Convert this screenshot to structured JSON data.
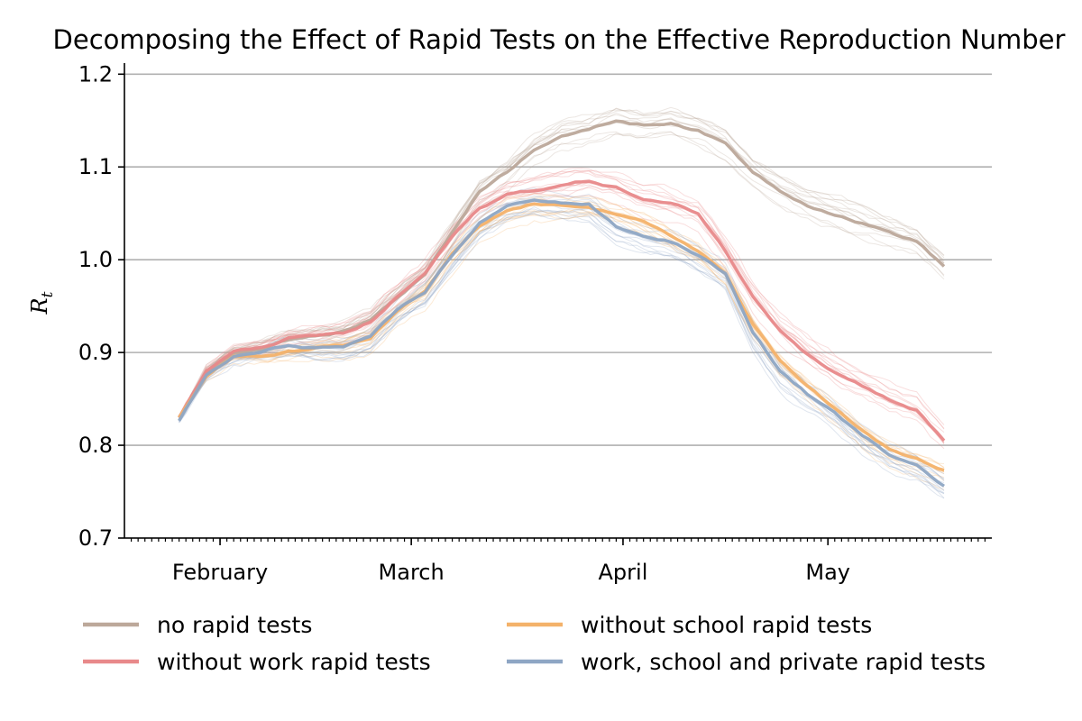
{
  "chart_data": {
    "type": "line",
    "title": "Decomposing the Effect of Rapid Tests on the Effective Reproduction Number",
    "xlabel": "",
    "ylabel": {
      "main": "R",
      "subscript": "t"
    },
    "x_start": "2021-01-26",
    "x_end": "2021-05-18",
    "xlim": [
      "2021-01-18",
      "2021-05-25"
    ],
    "ylim": [
      0.7,
      1.21
    ],
    "x_tick_labels": [
      {
        "date": "2021-02-01",
        "label": "February"
      },
      {
        "date": "2021-03-01",
        "label": "March"
      },
      {
        "date": "2021-04-01",
        "label": "April"
      },
      {
        "date": "2021-05-01",
        "label": "May"
      }
    ],
    "y_ticks": [
      0.7,
      0.8,
      0.9,
      1.0,
      1.1,
      1.2
    ],
    "y_tick_labels": [
      "0.7",
      "0.8",
      "0.9",
      "1.0",
      "1.1",
      "1.2"
    ],
    "grid": "horizontal",
    "legend_position": "bottom",
    "series": [
      {
        "name": "no rapid tests",
        "color": "#bca89a",
        "points": [
          [
            "2021-01-26",
            0.83
          ],
          [
            "2021-01-30",
            0.88
          ],
          [
            "2021-02-03",
            0.9
          ],
          [
            "2021-02-07",
            0.905
          ],
          [
            "2021-02-11",
            0.915
          ],
          [
            "2021-02-15",
            0.918
          ],
          [
            "2021-02-19",
            0.922
          ],
          [
            "2021-02-23",
            0.935
          ],
          [
            "2021-02-27",
            0.96
          ],
          [
            "2021-03-03",
            0.985
          ],
          [
            "2021-03-07",
            1.03
          ],
          [
            "2021-03-11",
            1.075
          ],
          [
            "2021-03-15",
            1.095
          ],
          [
            "2021-03-19",
            1.12
          ],
          [
            "2021-03-23",
            1.135
          ],
          [
            "2021-03-27",
            1.14
          ],
          [
            "2021-03-31",
            1.15
          ],
          [
            "2021-04-04",
            1.145
          ],
          [
            "2021-04-08",
            1.148
          ],
          [
            "2021-04-12",
            1.14
          ],
          [
            "2021-04-16",
            1.125
          ],
          [
            "2021-04-20",
            1.095
          ],
          [
            "2021-04-24",
            1.075
          ],
          [
            "2021-04-28",
            1.06
          ],
          [
            "2021-05-02",
            1.05
          ],
          [
            "2021-05-06",
            1.04
          ],
          [
            "2021-05-10",
            1.03
          ],
          [
            "2021-05-14",
            1.02
          ],
          [
            "2021-05-18",
            0.993
          ]
        ]
      },
      {
        "name": "without work rapid tests",
        "color": "#e8898a",
        "points": [
          [
            "2021-01-26",
            0.83
          ],
          [
            "2021-01-30",
            0.88
          ],
          [
            "2021-02-03",
            0.9
          ],
          [
            "2021-02-07",
            0.905
          ],
          [
            "2021-02-11",
            0.915
          ],
          [
            "2021-02-15",
            0.918
          ],
          [
            "2021-02-19",
            0.92
          ],
          [
            "2021-02-23",
            0.932
          ],
          [
            "2021-02-27",
            0.96
          ],
          [
            "2021-03-03",
            0.985
          ],
          [
            "2021-03-07",
            1.025
          ],
          [
            "2021-03-11",
            1.055
          ],
          [
            "2021-03-15",
            1.07
          ],
          [
            "2021-03-19",
            1.075
          ],
          [
            "2021-03-23",
            1.08
          ],
          [
            "2021-03-27",
            1.085
          ],
          [
            "2021-03-31",
            1.078
          ],
          [
            "2021-04-04",
            1.065
          ],
          [
            "2021-04-08",
            1.06
          ],
          [
            "2021-04-12",
            1.05
          ],
          [
            "2021-04-16",
            1.01
          ],
          [
            "2021-04-20",
            0.96
          ],
          [
            "2021-04-24",
            0.925
          ],
          [
            "2021-04-28",
            0.9
          ],
          [
            "2021-05-02",
            0.88
          ],
          [
            "2021-05-06",
            0.865
          ],
          [
            "2021-05-10",
            0.85
          ],
          [
            "2021-05-14",
            0.838
          ],
          [
            "2021-05-18",
            0.805
          ]
        ]
      },
      {
        "name": "without school rapid tests",
        "color": "#f4b26a",
        "points": [
          [
            "2021-01-26",
            0.83
          ],
          [
            "2021-01-30",
            0.875
          ],
          [
            "2021-02-03",
            0.895
          ],
          [
            "2021-02-07",
            0.895
          ],
          [
            "2021-02-11",
            0.9
          ],
          [
            "2021-02-15",
            0.905
          ],
          [
            "2021-02-19",
            0.906
          ],
          [
            "2021-02-23",
            0.915
          ],
          [
            "2021-02-27",
            0.945
          ],
          [
            "2021-03-03",
            0.965
          ],
          [
            "2021-03-07",
            1.005
          ],
          [
            "2021-03-11",
            1.035
          ],
          [
            "2021-03-15",
            1.052
          ],
          [
            "2021-03-19",
            1.06
          ],
          [
            "2021-03-23",
            1.057
          ],
          [
            "2021-03-27",
            1.058
          ],
          [
            "2021-03-31",
            1.05
          ],
          [
            "2021-04-04",
            1.04
          ],
          [
            "2021-04-08",
            1.025
          ],
          [
            "2021-04-12",
            1.01
          ],
          [
            "2021-04-16",
            0.985
          ],
          [
            "2021-04-20",
            0.93
          ],
          [
            "2021-04-24",
            0.89
          ],
          [
            "2021-04-28",
            0.865
          ],
          [
            "2021-05-02",
            0.84
          ],
          [
            "2021-05-06",
            0.815
          ],
          [
            "2021-05-10",
            0.795
          ],
          [
            "2021-05-14",
            0.785
          ],
          [
            "2021-05-18",
            0.773
          ]
        ]
      },
      {
        "name": "work, school and private rapid tests",
        "color": "#8ea6c4",
        "points": [
          [
            "2021-01-26",
            0.826
          ],
          [
            "2021-01-30",
            0.875
          ],
          [
            "2021-02-03",
            0.895
          ],
          [
            "2021-02-07",
            0.9
          ],
          [
            "2021-02-11",
            0.907
          ],
          [
            "2021-02-15",
            0.905
          ],
          [
            "2021-02-19",
            0.906
          ],
          [
            "2021-02-23",
            0.915
          ],
          [
            "2021-02-27",
            0.945
          ],
          [
            "2021-03-03",
            0.965
          ],
          [
            "2021-03-07",
            1.005
          ],
          [
            "2021-03-11",
            1.04
          ],
          [
            "2021-03-15",
            1.057
          ],
          [
            "2021-03-19",
            1.065
          ],
          [
            "2021-03-23",
            1.062
          ],
          [
            "2021-03-27",
            1.06
          ],
          [
            "2021-03-31",
            1.035
          ],
          [
            "2021-04-04",
            1.025
          ],
          [
            "2021-04-08",
            1.02
          ],
          [
            "2021-04-12",
            1.005
          ],
          [
            "2021-04-16",
            0.985
          ],
          [
            "2021-04-20",
            0.92
          ],
          [
            "2021-04-24",
            0.88
          ],
          [
            "2021-04-28",
            0.855
          ],
          [
            "2021-05-02",
            0.835
          ],
          [
            "2021-05-06",
            0.81
          ],
          [
            "2021-05-10",
            0.79
          ],
          [
            "2021-05-14",
            0.78
          ],
          [
            "2021-05-18",
            0.758
          ]
        ]
      }
    ]
  }
}
